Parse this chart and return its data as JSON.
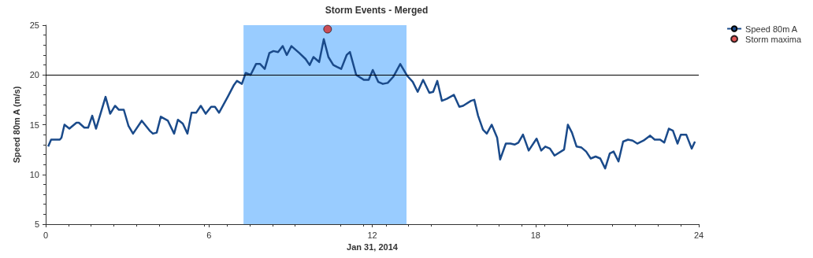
{
  "chart_data": {
    "type": "line",
    "title": "Storm Events - Merged",
    "xlabel": "Jan 31, 2014",
    "ylabel": "Speed 80m A (m/s)",
    "xlim": [
      0,
      24
    ],
    "xticks": [
      0,
      6,
      12,
      18,
      24
    ],
    "ylim": [
      5,
      25
    ],
    "yticks": [
      5,
      10,
      15,
      20,
      25
    ],
    "grid": false,
    "legend": "top right",
    "series": [
      {
        "name": "Speed 80m A",
        "color": "#1a4a8a",
        "marker": "none",
        "x": [
          0.09,
          0.2,
          0.52,
          0.58,
          0.69,
          0.87,
          1.13,
          1.22,
          1.42,
          1.56,
          1.71,
          1.85,
          2.2,
          2.37,
          2.55,
          2.69,
          2.87,
          3.04,
          3.21,
          3.53,
          3.82,
          3.94,
          4.08,
          4.23,
          4.49,
          4.72,
          4.86,
          5.04,
          5.21,
          5.36,
          5.53,
          5.7,
          5.88,
          6.08,
          6.22,
          6.37,
          6.69,
          6.92,
          7.03,
          7.21,
          7.35,
          7.53,
          7.73,
          7.88,
          8.05,
          8.22,
          8.37,
          8.54,
          8.71,
          8.86,
          9.03,
          9.32,
          9.55,
          9.7,
          9.84,
          10.05,
          10.22,
          10.39,
          10.57,
          10.71,
          10.86,
          11.06,
          11.18,
          11.41,
          11.7,
          11.87,
          12.02,
          12.22,
          12.39,
          12.57,
          12.77,
          13.03,
          13.29,
          13.49,
          13.67,
          13.87,
          14.1,
          14.24,
          14.39,
          14.56,
          14.74,
          15.0,
          15.2,
          15.34,
          15.63,
          15.75,
          15.89,
          16.07,
          16.21,
          16.39,
          16.59,
          16.7,
          16.91,
          17.08,
          17.23,
          17.37,
          17.54,
          17.75,
          18.04,
          18.21,
          18.36,
          18.53,
          18.7,
          19.05,
          19.19,
          19.34,
          19.51,
          19.69,
          19.86,
          20.03,
          20.21,
          20.38,
          20.56,
          20.73,
          20.87,
          21.05,
          21.22,
          21.4,
          21.57,
          21.74,
          21.97,
          22.21,
          22.38,
          22.58,
          22.73,
          22.9,
          23.05,
          23.22,
          23.34,
          23.54,
          23.74,
          23.86
        ],
        "values": [
          12.8,
          13.5,
          13.5,
          13.7,
          15.0,
          14.6,
          15.2,
          15.2,
          14.7,
          14.7,
          15.9,
          14.6,
          17.8,
          16.1,
          16.9,
          16.5,
          16.5,
          14.9,
          14.1,
          15.4,
          14.4,
          14.1,
          14.2,
          15.8,
          15.4,
          14.1,
          15.5,
          15.1,
          14.1,
          16.2,
          16.2,
          16.9,
          16.1,
          16.8,
          16.8,
          16.2,
          17.8,
          19.0,
          19.4,
          19.1,
          20.2,
          20.0,
          21.1,
          21.1,
          20.6,
          22.2,
          22.4,
          22.3,
          22.9,
          22.0,
          22.9,
          22.2,
          21.6,
          21.0,
          21.8,
          21.3,
          23.6,
          21.8,
          21.0,
          20.8,
          20.6,
          22.0,
          22.3,
          20.0,
          19.5,
          19.5,
          20.5,
          19.3,
          19.1,
          19.2,
          19.8,
          21.1,
          19.9,
          19.3,
          18.3,
          19.5,
          18.2,
          18.3,
          19.4,
          17.4,
          17.6,
          18.0,
          16.8,
          16.9,
          17.4,
          17.5,
          15.9,
          14.5,
          14.1,
          15.0,
          13.7,
          11.5,
          13.1,
          13.1,
          13.0,
          13.2,
          14.0,
          12.4,
          13.6,
          12.4,
          12.8,
          12.6,
          11.9,
          12.5,
          15.0,
          14.2,
          12.8,
          12.7,
          12.3,
          11.6,
          11.8,
          11.6,
          10.6,
          12.1,
          12.3,
          11.3,
          13.3,
          13.5,
          13.4,
          13.1,
          13.4,
          13.9,
          13.5,
          13.5,
          13.2,
          14.6,
          14.4,
          13.1,
          14.0,
          14.0,
          12.6,
          13.3
        ]
      },
      {
        "name": "Storm maxima",
        "type": "scatter",
        "color": "#d62d2d",
        "marker": "circle",
        "x": [
          10.36
        ],
        "values": [
          24.6
        ]
      }
    ],
    "ref_lines": [
      {
        "axis": "y",
        "value": 20,
        "color": "#000000"
      }
    ],
    "bands": [
      {
        "axis": "x",
        "from": 7.27,
        "to": 13.26,
        "color": "#99ccff"
      }
    ]
  }
}
